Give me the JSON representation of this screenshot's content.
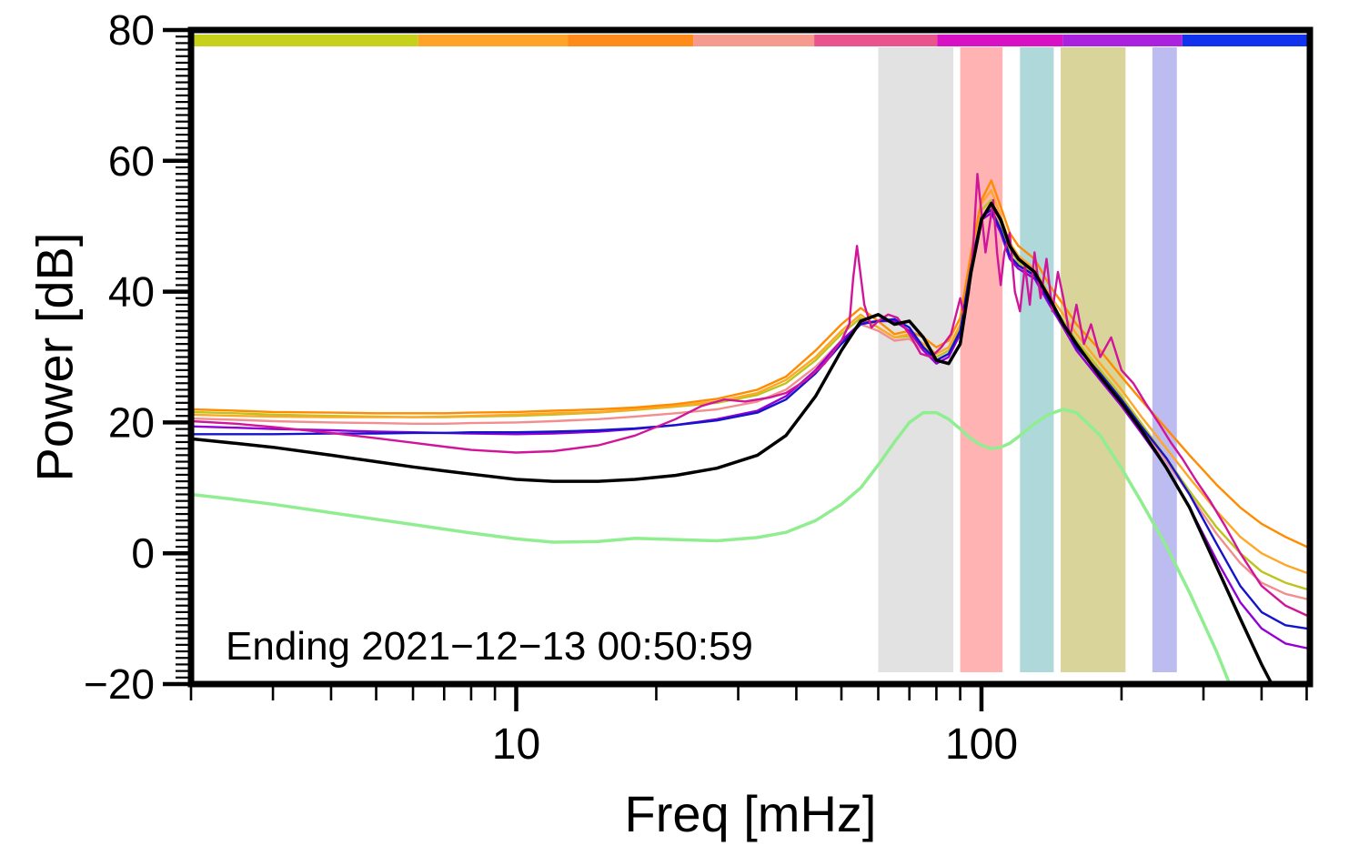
{
  "chart_data": {
    "type": "line",
    "title": "",
    "xlabel": "Freq [mHz]",
    "ylabel": "Power [dB]",
    "xscale": "log",
    "xlim": [
      2,
      508
    ],
    "ylim": [
      -20,
      80
    ],
    "grid": false,
    "legend": "none",
    "annotation": {
      "text": "Ending 2021−12−13 00:50:59"
    },
    "yticks": {
      "values": [
        -20,
        0,
        20,
        40,
        60,
        80
      ],
      "labels": [
        "−20",
        "0",
        "20",
        "40",
        "60",
        "80"
      ],
      "minor_step_db": 1
    },
    "xticks": {
      "major": [
        10,
        100
      ],
      "labels": [
        "10",
        "100"
      ],
      "minor": [
        2,
        3,
        4,
        5,
        6,
        7,
        8,
        9,
        20,
        30,
        40,
        50,
        60,
        70,
        80,
        90,
        200,
        300,
        400,
        500
      ]
    },
    "top_band_strip": [
      {
        "name": "segment-yellow-green",
        "from": 0.0,
        "to": 0.203,
        "color": "#c7d11c"
      },
      {
        "name": "segment-orange-light",
        "from": 0.203,
        "to": 0.337,
        "color": "#ffa428"
      },
      {
        "name": "segment-orange-dark",
        "from": 0.337,
        "to": 0.449,
        "color": "#ff8c1a"
      },
      {
        "name": "segment-salmon",
        "from": 0.449,
        "to": 0.557,
        "color": "#f79a8e"
      },
      {
        "name": "segment-pink-red",
        "from": 0.557,
        "to": 0.667,
        "color": "#e8548c"
      },
      {
        "name": "segment-magenta",
        "from": 0.667,
        "to": 0.779,
        "color": "#d911c4"
      },
      {
        "name": "segment-purple",
        "from": 0.779,
        "to": 0.886,
        "color": "#aa22dd"
      },
      {
        "name": "segment-blue",
        "from": 0.886,
        "to": 1.0,
        "color": "#1133ee"
      }
    ],
    "shaded_bands": [
      {
        "name": "band-gray",
        "x1_mhz": 60,
        "x2_mhz": 87,
        "color": "#e2e2e2"
      },
      {
        "name": "band-pink",
        "x1_mhz": 90,
        "x2_mhz": 111,
        "color": "#ffb3b3"
      },
      {
        "name": "band-teal",
        "x1_mhz": 121,
        "x2_mhz": 143,
        "color": "#aed8da"
      },
      {
        "name": "band-khaki",
        "x1_mhz": 148,
        "x2_mhz": 204,
        "color": "#d8d49a"
      },
      {
        "name": "band-lavender",
        "x1_mhz": 233,
        "x2_mhz": 263,
        "color": "#bcbcf0"
      }
    ],
    "series": [
      {
        "name": "salmon",
        "color": "#f28e8e",
        "width": 2.4,
        "x_mhz": [
          2,
          2.5,
          3,
          4,
          5,
          6,
          7,
          8,
          10,
          12,
          15,
          18,
          22,
          27,
          33,
          38,
          44,
          50,
          55,
          60,
          65,
          70,
          75,
          80,
          85,
          90,
          95,
          100,
          105,
          110,
          115,
          120,
          130,
          140,
          150,
          160,
          180,
          200,
          220,
          250,
          280,
          320,
          360,
          400,
          450,
          500
        ],
        "y_db": [
          20.6,
          20.4,
          20.2,
          20,
          19.9,
          19.8,
          19.8,
          19.9,
          20,
          20.2,
          20.5,
          20.9,
          21.4,
          22,
          23.2,
          25,
          28.5,
          32.5,
          35,
          34,
          32.5,
          32.8,
          31,
          29.5,
          30.5,
          34,
          43,
          51.5,
          53,
          49.5,
          45.5,
          44,
          42,
          38,
          35,
          32,
          27.5,
          23.5,
          19.5,
          14,
          9,
          3,
          -1.5,
          -4.5,
          -6.2,
          -7
        ]
      },
      {
        "name": "yellow-green",
        "color": "#bcc41e",
        "width": 2.4,
        "x_mhz": [
          2,
          2.5,
          3,
          4,
          5,
          6,
          7,
          8,
          10,
          12,
          15,
          18,
          22,
          27,
          33,
          38,
          44,
          50,
          55,
          60,
          65,
          70,
          75,
          80,
          85,
          90,
          95,
          100,
          105,
          110,
          115,
          120,
          130,
          140,
          150,
          160,
          180,
          200,
          220,
          250,
          280,
          320,
          360,
          400,
          450,
          500
        ],
        "y_db": [
          21.6,
          21.4,
          21.2,
          21,
          20.9,
          20.8,
          20.8,
          20.9,
          21,
          21.2,
          21.5,
          21.9,
          22.4,
          23,
          24.2,
          26,
          29.5,
          33.5,
          36,
          34.5,
          33,
          33.2,
          31.5,
          30,
          31,
          34.5,
          44,
          52.5,
          54,
          50.5,
          46.5,
          44.5,
          42.5,
          38.5,
          35.5,
          32.5,
          28,
          24,
          20,
          14.5,
          9.5,
          4,
          0,
          -2.8,
          -4.5,
          -5.5
        ]
      },
      {
        "name": "orange-light",
        "color": "#ffa726",
        "width": 2.4,
        "x_mhz": [
          2,
          2.5,
          3,
          4,
          5,
          6,
          7,
          8,
          10,
          12,
          15,
          18,
          22,
          27,
          33,
          38,
          44,
          50,
          55,
          60,
          65,
          70,
          75,
          80,
          85,
          90,
          95,
          100,
          105,
          110,
          115,
          120,
          130,
          140,
          150,
          160,
          180,
          200,
          220,
          250,
          280,
          320,
          360,
          400,
          450,
          500
        ],
        "y_db": [
          21.2,
          21,
          20.9,
          20.8,
          20.8,
          20.8,
          20.9,
          21,
          21.2,
          21.4,
          21.6,
          22,
          22.5,
          23.2,
          24.5,
          26.5,
          30,
          34,
          36.5,
          34.5,
          33,
          33.5,
          32,
          30.5,
          31.5,
          35,
          45,
          53.5,
          55.5,
          51.5,
          47.5,
          45.5,
          43.5,
          39.5,
          36.5,
          33.5,
          29,
          25,
          21,
          16,
          11.5,
          6.5,
          2.5,
          0,
          -1.8,
          -3
        ]
      },
      {
        "name": "orange-dark",
        "color": "#ff8c00",
        "width": 2.4,
        "x_mhz": [
          2,
          2.5,
          3,
          4,
          5,
          6,
          7,
          8,
          10,
          12,
          15,
          18,
          22,
          27,
          33,
          38,
          44,
          50,
          55,
          60,
          65,
          70,
          75,
          80,
          85,
          90,
          95,
          100,
          105,
          110,
          115,
          120,
          130,
          140,
          150,
          160,
          180,
          200,
          220,
          250,
          280,
          320,
          360,
          400,
          450,
          500
        ],
        "y_db": [
          22,
          21.8,
          21.6,
          21.5,
          21.4,
          21.4,
          21.4,
          21.5,
          21.6,
          21.8,
          22,
          22.3,
          22.8,
          23.6,
          25,
          27,
          31,
          35,
          37.5,
          35.5,
          33.5,
          34,
          33,
          31.5,
          32.5,
          36,
          46,
          54,
          57,
          53,
          49,
          47,
          45,
          41,
          38,
          35,
          31,
          27,
          23.5,
          19,
          15,
          10.5,
          7,
          4.5,
          2.5,
          1
        ]
      },
      {
        "name": "purple",
        "color": "#9400d3",
        "width": 2.4,
        "x_mhz": [
          2,
          2.5,
          3,
          4,
          5,
          6,
          7,
          8,
          10,
          12,
          15,
          18,
          22,
          27,
          33,
          38,
          44,
          50,
          55,
          60,
          65,
          70,
          75,
          80,
          85,
          90,
          95,
          100,
          105,
          110,
          115,
          120,
          130,
          140,
          150,
          160,
          180,
          200,
          220,
          250,
          280,
          320,
          360,
          400,
          450,
          500
        ],
        "y_db": [
          19.4,
          19.2,
          19,
          18.8,
          18.6,
          18.5,
          18.4,
          18.3,
          18.2,
          18.3,
          18.6,
          19,
          19.6,
          20.5,
          21.8,
          24,
          28,
          32.5,
          35.2,
          35.5,
          35.5,
          34,
          31,
          29,
          30,
          33.5,
          43.5,
          51,
          52,
          49,
          45,
          43.5,
          42,
          38,
          34.5,
          31,
          26.5,
          22.5,
          18.5,
          13,
          7,
          -1,
          -7.5,
          -11.5,
          -13.8,
          -14.5
        ]
      },
      {
        "name": "blue",
        "color": "#1414cc",
        "width": 2.4,
        "x_mhz": [
          2,
          2.5,
          3,
          4,
          5,
          6,
          7,
          8,
          10,
          12,
          15,
          18,
          22,
          27,
          33,
          38,
          44,
          50,
          55,
          60,
          65,
          70,
          75,
          80,
          85,
          90,
          95,
          100,
          105,
          110,
          115,
          120,
          130,
          140,
          150,
          160,
          180,
          200,
          220,
          250,
          280,
          320,
          360,
          400,
          450,
          500
        ],
        "y_db": [
          18.2,
          18.2,
          18.2,
          18.3,
          18.3,
          18.4,
          18.4,
          18.5,
          18.5,
          18.6,
          18.8,
          19.1,
          19.6,
          20.3,
          21.5,
          23.5,
          27.5,
          32,
          35,
          35.5,
          35.8,
          34.5,
          31.5,
          29.5,
          30.5,
          34,
          44,
          51.5,
          52.5,
          49.5,
          45.5,
          44,
          42.5,
          38.5,
          35,
          31.5,
          27.5,
          23.5,
          19.5,
          14.5,
          9,
          1.5,
          -5,
          -9,
          -11,
          -11.5
        ]
      },
      {
        "name": "magenta-spiky",
        "color": "#d1159b",
        "width": 2.4,
        "x_mhz": [
          2,
          2.5,
          3,
          4,
          5,
          6,
          7,
          8,
          10,
          12,
          15,
          18,
          22,
          25,
          28,
          31,
          35,
          38,
          42,
          46,
          50,
          52,
          53,
          54,
          56,
          58,
          60,
          63,
          66,
          70,
          74,
          78,
          82,
          86,
          90,
          92,
          94,
          96,
          98,
          100,
          102,
          104,
          106,
          108,
          110,
          112,
          115,
          118,
          121,
          124,
          127,
          130,
          134,
          138,
          142,
          146,
          150,
          155,
          160,
          166,
          172,
          180,
          190,
          200,
          212,
          225,
          240,
          255,
          270,
          290,
          310,
          335,
          360,
          400,
          450,
          500
        ],
        "y_db": [
          20.2,
          19.8,
          19.3,
          18.4,
          17.6,
          16.9,
          16.3,
          15.8,
          15.4,
          15.6,
          16.5,
          18,
          20.5,
          22.5,
          23.5,
          23.2,
          23.8,
          24.5,
          26.5,
          29,
          32.5,
          35,
          42,
          47,
          38,
          34.5,
          35.5,
          36.5,
          36,
          33.5,
          30.5,
          30,
          31.5,
          33.5,
          39,
          36,
          40,
          47,
          58,
          52,
          46,
          50,
          54,
          46,
          41,
          46,
          49,
          40,
          37,
          44,
          38,
          46,
          39,
          45,
          37,
          43,
          39,
          33,
          38,
          32,
          35,
          30,
          33,
          28,
          26,
          23,
          20,
          17,
          14.5,
          11,
          8,
          4,
          0,
          -5,
          -8,
          -9.5
        ]
      },
      {
        "name": "pale-green",
        "color": "#90ee90",
        "width": 3.5,
        "x_mhz": [
          2,
          2.5,
          3,
          4,
          5,
          6,
          7,
          8,
          10,
          12,
          15,
          18,
          22,
          27,
          33,
          38,
          44,
          50,
          55,
          60,
          65,
          70,
          75,
          80,
          85,
          90,
          95,
          100,
          105,
          110,
          115,
          120,
          130,
          140,
          150,
          160,
          180,
          200,
          220,
          250,
          280,
          320,
          360,
          400,
          450,
          500
        ],
        "y_db": [
          9,
          8.2,
          7.5,
          6.2,
          5.2,
          4.4,
          3.7,
          3.1,
          2.2,
          1.7,
          1.8,
          2.3,
          2.1,
          1.9,
          2.4,
          3.2,
          5,
          7.5,
          10,
          13.5,
          17,
          20,
          21.5,
          21.5,
          20.5,
          19,
          17.5,
          16.5,
          16,
          16.2,
          16.8,
          17.8,
          19.8,
          21.3,
          22,
          21.5,
          18,
          13,
          8,
          1,
          -6,
          -15,
          -24,
          -32,
          -40,
          -48
        ]
      },
      {
        "name": "black-mean",
        "color": "#000000",
        "width": 3.5,
        "x_mhz": [
          2,
          2.5,
          3,
          4,
          5,
          6,
          7,
          8,
          10,
          12,
          15,
          18,
          22,
          27,
          33,
          38,
          44,
          50,
          55,
          60,
          65,
          70,
          75,
          80,
          85,
          90,
          95,
          100,
          105,
          110,
          115,
          120,
          130,
          140,
          150,
          160,
          180,
          200,
          220,
          250,
          280,
          320,
          360,
          400,
          450,
          500
        ],
        "y_db": [
          17.5,
          16.8,
          16.2,
          15,
          14,
          13.2,
          12.6,
          12.1,
          11.3,
          11,
          11,
          11.3,
          11.9,
          13,
          15,
          18,
          24,
          31,
          35.5,
          36.5,
          35,
          35.5,
          33,
          29.5,
          29,
          32,
          43,
          51,
          53.5,
          51,
          47,
          45,
          43,
          39,
          35,
          32,
          27,
          23,
          19,
          13,
          7,
          -2,
          -10,
          -17,
          -24,
          -30
        ]
      }
    ]
  }
}
